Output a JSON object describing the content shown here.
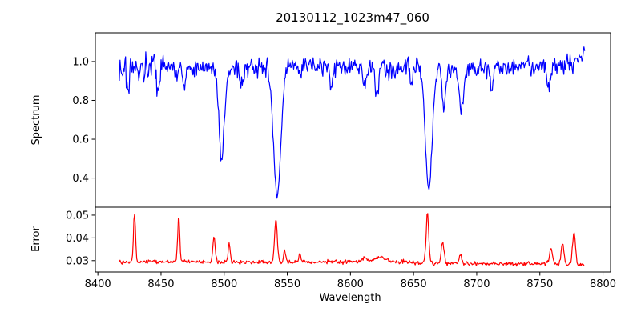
{
  "figure": {
    "title": "20130112_1023m47_060",
    "xlabel": "Wavelength",
    "background_color": "#ffffff",
    "frame_color": "#000000"
  },
  "chart_data": [
    {
      "name": "spectrum",
      "type": "line",
      "color": "#0000ff",
      "ylabel": "Spectrum",
      "xlim": [
        8398,
        8806
      ],
      "ylim": [
        0.25,
        1.148
      ],
      "x_ticks": [
        8400,
        8450,
        8500,
        8550,
        8600,
        8650,
        8700,
        8750,
        8800
      ],
      "x_tick_labels": [
        "8400",
        "8450",
        "8500",
        "8550",
        "8600",
        "8650",
        "8700",
        "8750",
        "8800"
      ],
      "y_ticks": [
        0.4,
        0.6,
        0.8,
        1.0
      ],
      "y_tick_labels": [
        "0.4",
        "0.6",
        "0.8",
        "1.0"
      ],
      "grid": false,
      "legend": null,
      "x_start": 8417,
      "x_end": 8786,
      "step": 0.55,
      "seed": 8542,
      "noise_sigma": 0.024,
      "noise_boost_below": 8452,
      "noise_boost": 1.5,
      "continuum": [
        [
          8417,
          0.965
        ],
        [
          8460,
          0.968
        ],
        [
          8560,
          0.97
        ],
        [
          8660,
          0.968
        ],
        [
          8730,
          0.972
        ],
        [
          8778,
          0.985
        ],
        [
          8786,
          1.05
        ]
      ],
      "absorption_lines": [
        {
          "center": 8424,
          "depth": 0.13,
          "sigma": 1.0
        },
        {
          "center": 8448,
          "depth": 0.14,
          "sigma": 1.0
        },
        {
          "center": 8468,
          "depth": 0.11,
          "sigma": 1.0
        },
        {
          "center": 8498,
          "depth": 0.46,
          "sigma": 2.2
        },
        {
          "center": 8514,
          "depth": 0.1,
          "sigma": 1.2
        },
        {
          "center": 8542,
          "depth": 0.66,
          "sigma": 2.9
        },
        {
          "center": 8585,
          "depth": 0.09,
          "sigma": 1.2
        },
        {
          "center": 8611,
          "depth": 0.1,
          "sigma": 1.3
        },
        {
          "center": 8621,
          "depth": 0.13,
          "sigma": 1.2
        },
        {
          "center": 8648,
          "depth": 0.09,
          "sigma": 1.0
        },
        {
          "center": 8662,
          "depth": 0.63,
          "sigma": 2.7
        },
        {
          "center": 8674,
          "depth": 0.2,
          "sigma": 1.5
        },
        {
          "center": 8688,
          "depth": 0.23,
          "sigma": 1.7
        },
        {
          "center": 8712,
          "depth": 0.12,
          "sigma": 1.1
        },
        {
          "center": 8757,
          "depth": 0.13,
          "sigma": 1.1
        }
      ]
    },
    {
      "name": "error",
      "type": "line",
      "color": "#ff0000",
      "ylabel": "Error",
      "xlim": [
        8398,
        8806
      ],
      "ylim": [
        0.025,
        0.0535
      ],
      "y_ticks": [
        0.03,
        0.04,
        0.05
      ],
      "y_tick_labels": [
        "0.03",
        "0.04",
        "0.05"
      ],
      "grid": false,
      "legend": null,
      "x_start": 8417,
      "x_end": 8786,
      "step": 0.55,
      "seed": 8661,
      "noise_sigma": 0.00045,
      "baseline": [
        [
          8417,
          0.0295
        ],
        [
          8540,
          0.0292
        ],
        [
          8600,
          0.0296
        ],
        [
          8640,
          0.0293
        ],
        [
          8700,
          0.0286
        ],
        [
          8748,
          0.0287
        ],
        [
          8786,
          0.0278
        ]
      ],
      "peaks": [
        {
          "center": 8429,
          "height": 0.0215,
          "sigma": 0.8
        },
        {
          "center": 8464,
          "height": 0.02,
          "sigma": 0.8
        },
        {
          "center": 8492,
          "height": 0.0105,
          "sigma": 1.0
        },
        {
          "center": 8504,
          "height": 0.0075,
          "sigma": 0.9
        },
        {
          "center": 8541,
          "height": 0.0185,
          "sigma": 1.1
        },
        {
          "center": 8548,
          "height": 0.0055,
          "sigma": 0.8
        },
        {
          "center": 8560,
          "height": 0.0035,
          "sigma": 0.9
        },
        {
          "center": 8611,
          "height": 0.0018,
          "sigma": 2.0
        },
        {
          "center": 8624,
          "height": 0.0022,
          "sigma": 4.0
        },
        {
          "center": 8661,
          "height": 0.022,
          "sigma": 1.0
        },
        {
          "center": 8673,
          "height": 0.009,
          "sigma": 1.1
        },
        {
          "center": 8687,
          "height": 0.004,
          "sigma": 0.9
        },
        {
          "center": 8759,
          "height": 0.0065,
          "sigma": 1.2
        },
        {
          "center": 8768,
          "height": 0.0095,
          "sigma": 1.1
        },
        {
          "center": 8777,
          "height": 0.014,
          "sigma": 1.2
        }
      ]
    }
  ]
}
